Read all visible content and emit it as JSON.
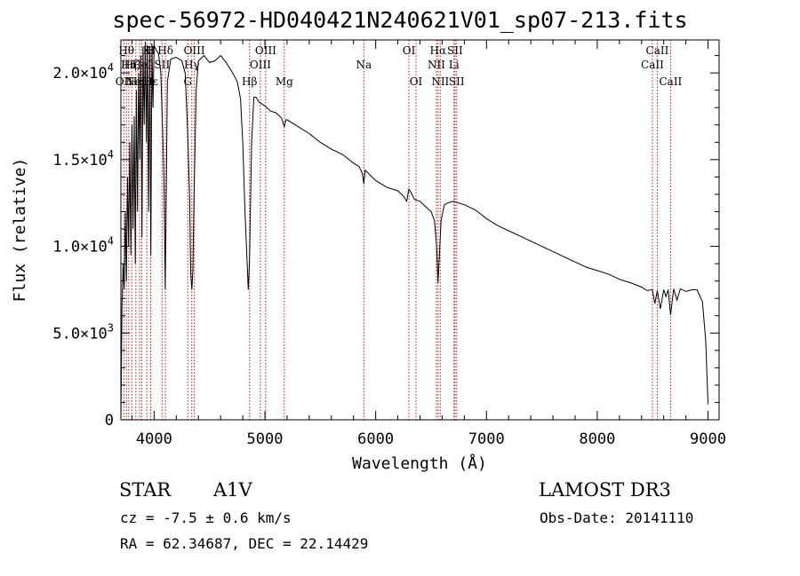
{
  "chart_data": {
    "type": "line",
    "title": "spec-56972-HD040421N240621V01_sp07-213.fits",
    "xlabel": "Wavelength (Å)",
    "ylabel": "Flux (relative)",
    "xlim": [
      3700,
      9100
    ],
    "ylim": [
      0,
      21900
    ],
    "x_ticks": [
      4000,
      5000,
      6000,
      7000,
      8000,
      9000
    ],
    "x_tick_labels": [
      "4000",
      "5000",
      "6000",
      "7000",
      "8000",
      "9000"
    ],
    "y_ticks": [
      0,
      5000,
      10000,
      15000,
      20000
    ],
    "y_tick_labels": [
      {
        "mant": "0",
        "exp": ""
      },
      {
        "mant": "5.0×10",
        "exp": "3"
      },
      {
        "mant": "1.0×10",
        "exp": "4"
      },
      {
        "mant": "1.5×10",
        "exp": "4"
      },
      {
        "mant": "2.0×10",
        "exp": "4"
      }
    ],
    "series": [
      {
        "name": "spectrum",
        "x": [
          3700,
          3710,
          3720,
          3730,
          3740,
          3750,
          3760,
          3770,
          3780,
          3790,
          3800,
          3810,
          3820,
          3830,
          3840,
          3850,
          3860,
          3870,
          3880,
          3890,
          3900,
          3910,
          3920,
          3930,
          3940,
          3950,
          3960,
          3970,
          3980,
          3990,
          4000,
          4020,
          4040,
          4060,
          4080,
          4090,
          4100,
          4110,
          4120,
          4150,
          4200,
          4250,
          4280,
          4300,
          4320,
          4330,
          4340,
          4350,
          4360,
          4380,
          4400,
          4450,
          4500,
          4550,
          4600,
          4650,
          4700,
          4750,
          4780,
          4800,
          4820,
          4840,
          4850,
          4861,
          4870,
          4880,
          4900,
          4920,
          4950,
          5000,
          5050,
          5100,
          5150,
          5175,
          5190,
          5200,
          5300,
          5400,
          5500,
          5600,
          5700,
          5800,
          5850,
          5880,
          5893,
          5905,
          5950,
          6000,
          6100,
          6200,
          6250,
          6280,
          6300,
          6320,
          6350,
          6400,
          6450,
          6500,
          6530,
          6550,
          6563,
          6575,
          6590,
          6620,
          6650,
          6700,
          6800,
          6900,
          7000,
          7100,
          7200,
          7300,
          7400,
          7500,
          7600,
          7700,
          7800,
          7900,
          8000,
          8100,
          8200,
          8300,
          8400,
          8450,
          8498,
          8520,
          8542,
          8570,
          8600,
          8620,
          8640,
          8662,
          8690,
          8720,
          8750,
          8800,
          8860,
          8900,
          8950,
          8980,
          9000
        ],
        "y": [
          0,
          6500,
          9000,
          7500,
          12000,
          8000,
          14000,
          10000,
          16000,
          9500,
          17000,
          11000,
          17500,
          9000,
          19000,
          12000,
          20000,
          15000,
          21000,
          10500,
          21500,
          17000,
          21800,
          16000,
          21600,
          12000,
          21500,
          9500,
          21700,
          18000,
          21600,
          21300,
          21100,
          20000,
          16000,
          13500,
          7500,
          13500,
          19500,
          20800,
          20900,
          20700,
          20000,
          17000,
          13000,
          8500,
          7500,
          8600,
          13000,
          19000,
          20700,
          21000,
          20600,
          20700,
          21000,
          20600,
          20100,
          19500,
          18500,
          16000,
          12000,
          9000,
          7500,
          9200,
          12500,
          16000,
          18600,
          18600,
          18300,
          18100,
          17800,
          17700,
          17400,
          16900,
          17300,
          17300,
          16900,
          16500,
          16000,
          15600,
          15300,
          14800,
          14600,
          14200,
          13600,
          14400,
          14100,
          13800,
          13400,
          13200,
          12900,
          12600,
          13300,
          13100,
          12700,
          12600,
          12300,
          12000,
          11500,
          10000,
          7900,
          9500,
          11500,
          12400,
          12500,
          12600,
          12400,
          12100,
          11600,
          11200,
          10900,
          10600,
          10300,
          10000,
          9700,
          9400,
          9100,
          8800,
          8600,
          8400,
          8100,
          7900,
          7650,
          7450,
          7500,
          6700,
          7450,
          6400,
          7500,
          7100,
          7500,
          6050,
          7550,
          6900,
          7550,
          7400,
          7500,
          7500,
          6800,
          4500,
          900
        ]
      }
    ],
    "line_markers": [
      {
        "wl": 3727,
        "label": "OII",
        "tier": 3
      },
      {
        "wl": 3750,
        "label": "Hθ",
        "tier": 1
      },
      {
        "wl": 3771,
        "label": "Hη",
        "tier": 2
      },
      {
        "wl": 3798,
        "label": "Hζ",
        "tier": 2
      },
      {
        "wl": 3835,
        "label": "Hη",
        "tier": 3
      },
      {
        "wl": 3869,
        "label": "NeIII",
        "tier": 3
      },
      {
        "wl": 3889,
        "label": "HeI",
        "tier": 2
      },
      {
        "wl": 3934,
        "label": "K",
        "tier": 1
      },
      {
        "wl": 3968,
        "label": "H",
        "tier": 1
      },
      {
        "wl": 3970,
        "label": "Hε",
        "tier": 3
      },
      {
        "wl": 4072,
        "label": "SII",
        "tier": 2
      },
      {
        "wl": 4102,
        "label": "Hδ",
        "tier": 1
      },
      {
        "wl": 4304,
        "label": "G",
        "tier": 3
      },
      {
        "wl": 4340,
        "label": "Hγ",
        "tier": 2
      },
      {
        "wl": 4363,
        "label": "OIII",
        "tier": 1
      },
      {
        "wl": 4861,
        "label": "Hβ",
        "tier": 3
      },
      {
        "wl": 4959,
        "label": "OIII",
        "tier": 2
      },
      {
        "wl": 5007,
        "label": "OIII",
        "tier": 1
      },
      {
        "wl": 5175,
        "label": "Mg",
        "tier": 3
      },
      {
        "wl": 5893,
        "label": "Na",
        "tier": 2
      },
      {
        "wl": 6300,
        "label": "OI",
        "tier": 1
      },
      {
        "wl": 6364,
        "label": "OI",
        "tier": 3
      },
      {
        "wl": 6548,
        "label": "NII",
        "tier": 2
      },
      {
        "wl": 6563,
        "label": "Hα",
        "tier": 1
      },
      {
        "wl": 6583,
        "label": "NII",
        "tier": 3
      },
      {
        "wl": 6707,
        "label": "Li",
        "tier": 2
      },
      {
        "wl": 6716,
        "label": "SII",
        "tier": 1
      },
      {
        "wl": 6731,
        "label": "SII",
        "tier": 3
      },
      {
        "wl": 8498,
        "label": "CaII",
        "tier": 2
      },
      {
        "wl": 8542,
        "label": "CaII",
        "tier": 1
      },
      {
        "wl": 8662,
        "label": "CaII",
        "tier": 3
      }
    ],
    "colors": {
      "axes": "#000000",
      "spectrum": "#000000",
      "line_markers": "#c01818"
    }
  },
  "info": {
    "object_type": "STAR",
    "spectral_class": "A1V",
    "survey": "LAMOST DR3",
    "cz": "cz = -7.5 ± 0.6 km/s",
    "obs_date": "Obs-Date: 20141110",
    "coords": "RA =  62.34687, DEC =  22.14429"
  }
}
